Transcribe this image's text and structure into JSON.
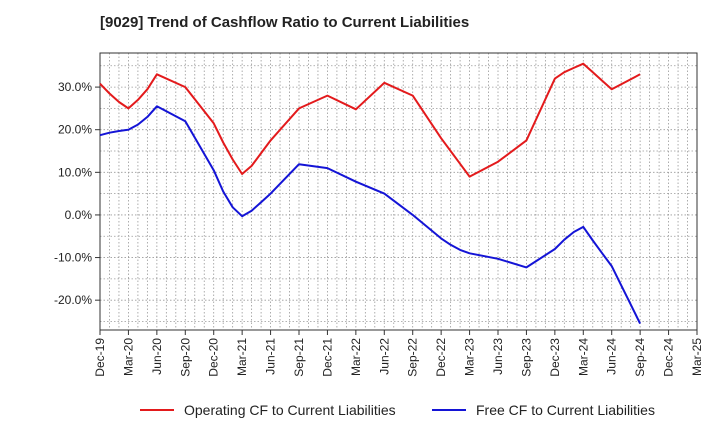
{
  "title": "[9029]  Trend of Cashflow Ratio to Current Liabilities",
  "colors": {
    "operating": "#e31a1c",
    "free": "#1414d6",
    "grid": "#999999",
    "axis": "#333333"
  },
  "chart_data": {
    "type": "line",
    "title": "[9029]  Trend of Cashflow Ratio to Current Liabilities",
    "xlabel": "",
    "ylabel": "",
    "x_ticks": [
      "Dec-19",
      "Mar-20",
      "Jun-20",
      "Sep-20",
      "Dec-20",
      "Mar-21",
      "Jun-21",
      "Sep-21",
      "Dec-21",
      "Mar-22",
      "Jun-22",
      "Sep-22",
      "Dec-22",
      "Mar-23",
      "Jun-23",
      "Sep-23",
      "Dec-23",
      "Mar-24",
      "Jun-24",
      "Sep-24",
      "Dec-24",
      "Mar-25"
    ],
    "y_ticks": [
      -20,
      -10,
      0,
      10,
      20,
      30
    ],
    "y_tick_labels": [
      "-20.0%",
      "-10.0%",
      "0.0%",
      "10.0%",
      "20.0%",
      "30.0%"
    ],
    "ylim": [
      -27,
      38
    ],
    "grid": true,
    "legend_position": "bottom",
    "series": [
      {
        "name": "Operating CF to Current Liabilities",
        "color": "#e31a1c",
        "x": [
          "Dec-19",
          "Jan-20",
          "Feb-20",
          "Mar-20",
          "Apr-20",
          "May-20",
          "Jun-20",
          "Sep-20",
          "Dec-20",
          "Jan-21",
          "Feb-21",
          "Mar-21",
          "Apr-21",
          "May-21",
          "Jun-21",
          "Sep-21",
          "Dec-21",
          "Mar-22",
          "Jun-22",
          "Sep-22",
          "Dec-22",
          "Jan-23",
          "Feb-23",
          "Mar-23",
          "Jun-23",
          "Sep-23",
          "Dec-23",
          "Jan-24",
          "Feb-24",
          "Mar-24",
          "Apr-24",
          "May-24",
          "Jun-24",
          "Sep-24"
        ],
        "values": [
          30.8,
          28.5,
          26.5,
          25.0,
          27.0,
          29.5,
          33.0,
          30.0,
          21.5,
          17.0,
          13.0,
          9.6,
          11.5,
          14.5,
          17.5,
          25.0,
          28.0,
          24.8,
          31.0,
          28.0,
          18.0,
          15.0,
          12.0,
          9.0,
          12.5,
          17.5,
          32.0,
          33.5,
          34.5,
          35.5,
          33.5,
          31.5,
          29.5,
          33.0
        ]
      },
      {
        "name": "Free CF to Current Liabilities",
        "color": "#1414d6",
        "x": [
          "Dec-19",
          "Jan-20",
          "Feb-20",
          "Mar-20",
          "Apr-20",
          "May-20",
          "Jun-20",
          "Sep-20",
          "Dec-20",
          "Jan-21",
          "Feb-21",
          "Mar-21",
          "Apr-21",
          "May-21",
          "Jun-21",
          "Sep-21",
          "Dec-21",
          "Mar-22",
          "Jun-22",
          "Sep-22",
          "Dec-22",
          "Jan-23",
          "Feb-23",
          "Mar-23",
          "Jun-23",
          "Sep-23",
          "Dec-23",
          "Jan-24",
          "Feb-24",
          "Mar-24",
          "Apr-24",
          "May-24",
          "Jun-24",
          "Jul-24",
          "Aug-24",
          "Sep-24"
        ],
        "values": [
          18.7,
          19.3,
          19.7,
          20.0,
          21.2,
          23.0,
          25.5,
          22.0,
          10.5,
          5.5,
          1.8,
          -0.3,
          1.0,
          3.0,
          5.0,
          11.9,
          11.0,
          7.8,
          5.0,
          0.0,
          -5.5,
          -7.0,
          -8.2,
          -9.0,
          -10.3,
          -12.3,
          -8.0,
          -5.8,
          -4.0,
          -2.8,
          -6.0,
          -9.0,
          -12.0,
          -16.5,
          -21.0,
          -25.5
        ]
      }
    ]
  }
}
